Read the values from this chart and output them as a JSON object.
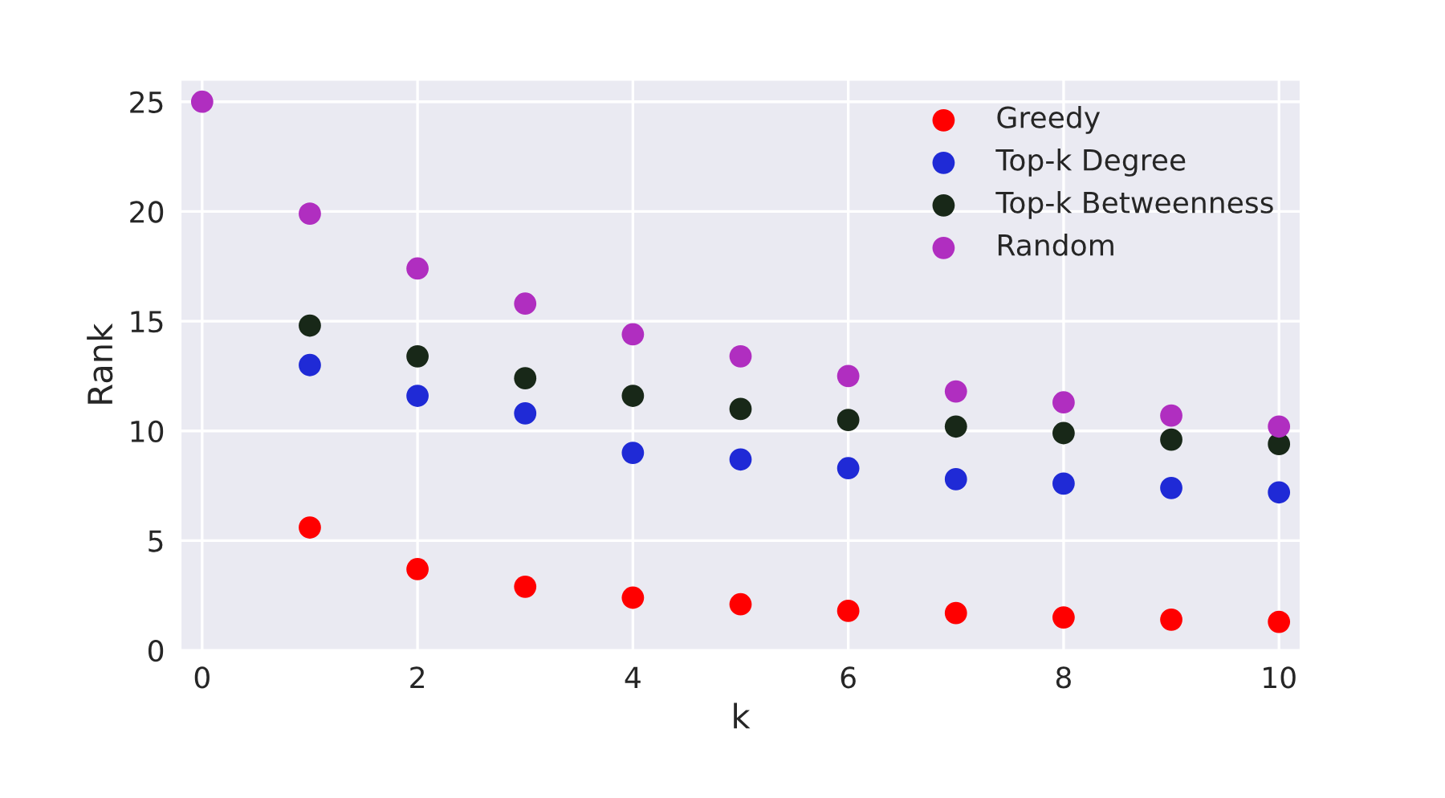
{
  "chart_data": {
    "type": "scatter",
    "xlabel": "k",
    "ylabel": "Rank",
    "x": [
      0,
      1,
      2,
      3,
      4,
      5,
      6,
      7,
      8,
      9,
      10
    ],
    "series": [
      {
        "name": "Greedy",
        "color": "#ff0000",
        "values": [
          null,
          5.6,
          3.7,
          2.9,
          2.4,
          2.1,
          1.8,
          1.7,
          1.5,
          1.4,
          1.3
        ]
      },
      {
        "name": "Top-k Degree",
        "color": "#1f2ad6",
        "values": [
          null,
          13.0,
          11.6,
          10.8,
          9.0,
          8.7,
          8.3,
          7.8,
          7.6,
          7.4,
          7.2
        ]
      },
      {
        "name": "Top-k Betweenness",
        "color": "#182818",
        "values": [
          null,
          14.8,
          13.4,
          12.4,
          11.6,
          11.0,
          10.5,
          10.2,
          9.9,
          9.6,
          9.4
        ]
      },
      {
        "name": "Random",
        "color": "#b02ec0",
        "values": [
          25,
          19.9,
          17.4,
          15.8,
          14.4,
          13.4,
          12.5,
          11.8,
          11.3,
          10.7,
          10.2
        ]
      }
    ],
    "xlim": [
      -0.2,
      10.2
    ],
    "ylim": [
      0,
      26
    ],
    "xticks": [
      0,
      2,
      4,
      6,
      8,
      10
    ],
    "yticks": [
      0,
      5,
      10,
      15,
      20,
      25
    ],
    "grid": true,
    "legend": "top right",
    "marker": "circle"
  }
}
